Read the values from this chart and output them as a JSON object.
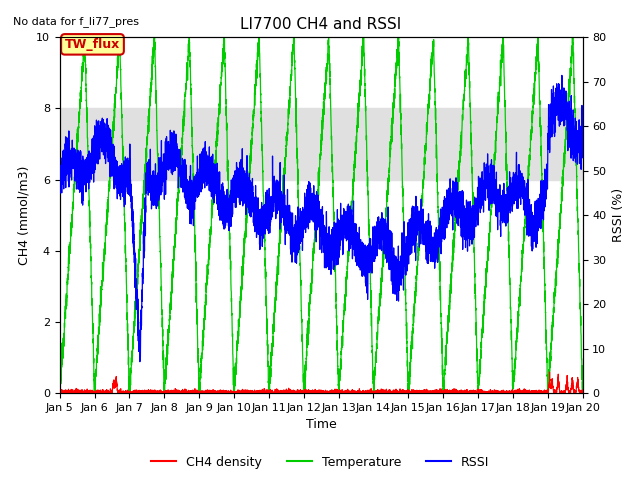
{
  "title": "LI7700 CH4 and RSSI",
  "no_data_text": "No data for f_li77_pres",
  "annotation_text": "TW_flux",
  "xlabel": "Time",
  "ylabel_left": "CH4 (mmol/m3)",
  "ylabel_right": "RSSI (%)",
  "ylim_left": [
    0,
    10
  ],
  "ylim_right": [
    0,
    80
  ],
  "xlim": [
    0,
    15
  ],
  "xtick_labels": [
    "Jan 5",
    "Jan 6",
    "Jan 7",
    "Jan 8",
    "Jan 9",
    "Jan 10",
    "Jan 11",
    "Jan 12",
    "Jan 13",
    "Jan 14",
    "Jan 15",
    "Jan 16",
    "Jan 17",
    "Jan 18",
    "Jan 19",
    "Jan 20"
  ],
  "shaded_ymin": 6,
  "shaded_ymax": 8,
  "legend_entries": [
    "CH4 density",
    "Temperature",
    "RSSI"
  ],
  "background_color": "#ffffff",
  "plot_bg": "#ffffff",
  "shaded_color": "#e0e0e0",
  "ch4_color": "#ff0000",
  "temp_color": "#00cc00",
  "rssi_color": "#0000ff",
  "annotation_facecolor": "#ffff99",
  "annotation_edgecolor": "#cc0000",
  "annotation_textcolor": "#cc0000",
  "title_fontsize": 11,
  "label_fontsize": 9,
  "tick_fontsize": 8,
  "no_data_fontsize": 8,
  "legend_fontsize": 9
}
